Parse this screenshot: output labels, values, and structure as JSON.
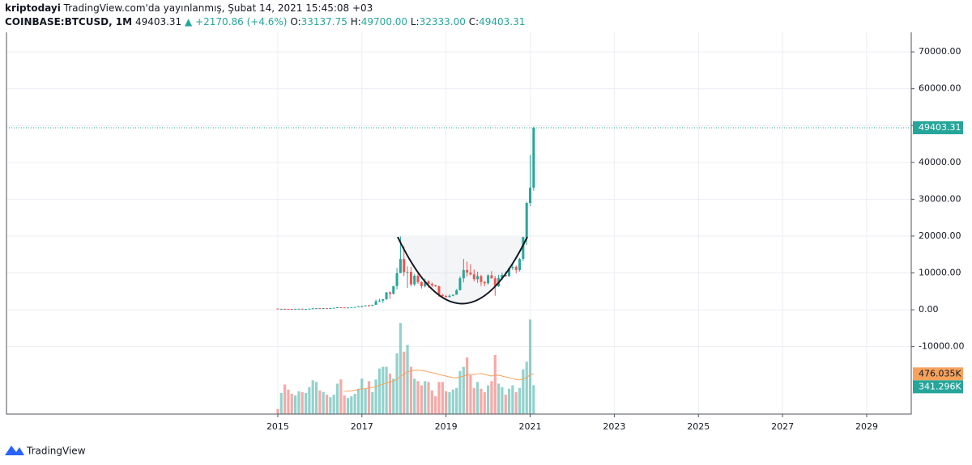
{
  "chart_data": {
    "type": "candlestick",
    "header": {
      "author": "kriptodayi",
      "published": "TradingView.com'da yayınlanmış, Şubat 14, 2021 15:45:08 +03",
      "symbol": "COINBASE:BTCUSD, 1M",
      "price": "49403.31",
      "direction": "▲",
      "change": "+2170.86 (+4.6%)",
      "ohlc": [
        {
          "key": "O:",
          "value": "33137.75"
        },
        {
          "key": "H:",
          "value": "49700.00"
        },
        {
          "key": "L:",
          "value": "32333.00"
        },
        {
          "key": "C:",
          "value": "49403.31"
        }
      ]
    },
    "brand": "TradingView",
    "up_color": "#26a69a",
    "down_color": "#ef5350",
    "x": [
      2015,
      2015.083,
      2015.167,
      2015.25,
      2015.333,
      2015.417,
      2015.5,
      2015.583,
      2015.667,
      2015.75,
      2015.833,
      2015.917,
      2016,
      2016.083,
      2016.167,
      2016.25,
      2016.333,
      2016.417,
      2016.5,
      2016.583,
      2016.667,
      2016.75,
      2016.833,
      2016.917,
      2017,
      2017.083,
      2017.167,
      2017.25,
      2017.333,
      2017.417,
      2017.5,
      2017.583,
      2017.667,
      2017.75,
      2017.833,
      2017.917,
      2018,
      2018.083,
      2018.167,
      2018.25,
      2018.333,
      2018.417,
      2018.5,
      2018.583,
      2018.667,
      2018.75,
      2018.833,
      2018.917,
      2019,
      2019.083,
      2019.167,
      2019.25,
      2019.333,
      2019.417,
      2019.5,
      2019.583,
      2019.667,
      2019.75,
      2019.833,
      2019.917,
      2020,
      2020.083,
      2020.167,
      2020.25,
      2020.333,
      2020.417,
      2020.5,
      2020.583,
      2020.667,
      2020.75,
      2020.833,
      2020.917,
      2021,
      2021.083
    ],
    "open": [
      320,
      218,
      254,
      244,
      236,
      230,
      263,
      284,
      230,
      236,
      314,
      378,
      430,
      368,
      437,
      416,
      448,
      531,
      673,
      624,
      573,
      609,
      700,
      742,
      964,
      970,
      1190,
      1080,
      1350,
      2300,
      2480,
      2870,
      4740,
      4340,
      6450,
      9950,
      13800,
      10200,
      10300,
      6900,
      9250,
      7500,
      6390,
      7730,
      7030,
      6630,
      6370,
      4040,
      3740,
      3440,
      3800,
      4100,
      5300,
      8550,
      10800,
      10100,
      9600,
      8300,
      9150,
      7550,
      7200,
      9350,
      8520,
      6410,
      8630,
      9450,
      9140,
      11350,
      11650,
      10780,
      13800,
      19700,
      28990,
      33137.75
    ],
    "high": [
      320,
      265,
      300,
      260,
      247,
      268,
      317,
      285,
      245,
      326,
      500,
      465,
      465,
      448,
      439,
      468,
      552,
      780,
      703,
      627,
      615,
      720,
      752,
      975,
      1150,
      1210,
      1350,
      1360,
      2760,
      3000,
      2920,
      4800,
      4980,
      6470,
      11400,
      19891,
      17250,
      11800,
      11700,
      9750,
      10000,
      7770,
      8500,
      8000,
      7400,
      6800,
      6570,
      4300,
      4100,
      4190,
      4120,
      5640,
      9090,
      13800,
      13100,
      12350,
      10950,
      10350,
      9510,
      7760,
      9600,
      10500,
      9180,
      9470,
      10060,
      10390,
      11440,
      12470,
      12050,
      14100,
      19870,
      29300,
      41986,
      49700
    ],
    "low": [
      170,
      212,
      235,
      214,
      228,
      220,
      255,
      199,
      226,
      236,
      310,
      347,
      350,
      365,
      409,
      414,
      440,
      530,
      580,
      535,
      570,
      605,
      690,
      735,
      750,
      920,
      890,
      1050,
      1340,
      2100,
      1830,
      2700,
      2970,
      4150,
      5520,
      10800,
      9150,
      5900,
      6400,
      6430,
      7000,
      5770,
      6070,
      5880,
      6110,
      6200,
      3550,
      3150,
      3360,
      3370,
      3680,
      4100,
      5290,
      7450,
      9070,
      9300,
      7710,
      7300,
      6500,
      6420,
      6850,
      8450,
      3800,
      6170,
      8100,
      8920,
      9000,
      10800,
      9900,
      10400,
      13240,
      17580,
      28130,
      32333
    ],
    "close": [
      218,
      254,
      244,
      236,
      230,
      263,
      284,
      230,
      236,
      314,
      378,
      430,
      368,
      437,
      416,
      448,
      531,
      673,
      624,
      573,
      609,
      700,
      742,
      964,
      970,
      1190,
      1080,
      1350,
      2300,
      2480,
      2870,
      4740,
      4340,
      6450,
      9950,
      13800,
      10200,
      10300,
      6900,
      9250,
      7500,
      6390,
      7730,
      7030,
      6630,
      6370,
      4040,
      3740,
      3440,
      3800,
      4100,
      5300,
      8550,
      10800,
      10100,
      9600,
      8300,
      9150,
      7550,
      7200,
      9350,
      8520,
      6410,
      8630,
      9450,
      9140,
      11350,
      11650,
      10780,
      13800,
      19700,
      28990,
      33137.75,
      49403.31
    ],
    "volume": {
      "values": [
        60,
        250,
        350,
        290,
        240,
        220,
        270,
        260,
        250,
        320,
        400,
        380,
        280,
        260,
        230,
        200,
        230,
        360,
        410,
        220,
        190,
        210,
        240,
        300,
        420,
        300,
        390,
        260,
        410,
        540,
        560,
        560,
        480,
        420,
        720,
        1080,
        740,
        820,
        560,
        420,
        390,
        340,
        390,
        380,
        280,
        210,
        380,
        380,
        270,
        260,
        290,
        310,
        510,
        560,
        670,
        460,
        310,
        380,
        300,
        260,
        340,
        390,
        700,
        360,
        320,
        230,
        300,
        340,
        260,
        310,
        530,
        620,
        1120,
        341.296
      ],
      "value_labels": [
        null,
        null,
        null,
        null,
        null,
        null,
        null,
        null,
        null,
        null,
        null,
        null,
        null,
        null,
        null,
        null,
        null,
        null,
        null,
        null,
        null,
        null,
        null,
        null,
        null,
        null,
        null,
        null,
        null,
        null,
        null,
        null,
        null,
        null,
        null,
        null,
        null,
        null,
        null,
        null,
        null,
        null,
        null,
        null,
        null,
        null,
        null,
        null,
        null,
        null,
        null,
        null,
        null,
        null,
        null,
        null,
        null,
        null,
        null,
        null,
        null,
        null,
        null,
        null,
        null,
        null,
        null,
        null,
        null,
        null,
        null,
        null,
        null,
        "341.296K"
      ],
      "axis": "y2"
    },
    "volume_ma": {
      "color": "#f7a25c",
      "values": [
        null,
        null,
        null,
        null,
        null,
        null,
        null,
        null,
        null,
        null,
        null,
        null,
        null,
        null,
        null,
        null,
        null,
        null,
        null,
        270,
        272,
        275,
        282,
        290,
        300,
        300,
        312,
        314,
        325,
        340,
        355,
        370,
        380,
        390,
        410,
        450,
        470,
        500,
        510,
        520,
        520,
        515,
        510,
        500,
        490,
        480,
        470,
        460,
        450,
        440,
        430,
        430,
        440,
        450,
        465,
        470,
        470,
        475,
        480,
        470,
        460,
        450,
        460,
        460,
        450,
        440,
        430,
        420,
        410,
        405,
        415,
        430,
        470,
        476.035
      ],
      "value_labels": [
        null,
        null,
        null,
        null,
        null,
        null,
        null,
        null,
        null,
        null,
        null,
        null,
        null,
        null,
        null,
        null,
        null,
        null,
        null,
        null,
        null,
        null,
        null,
        null,
        null,
        null,
        null,
        null,
        null,
        null,
        null,
        null,
        null,
        null,
        null,
        null,
        null,
        null,
        null,
        null,
        null,
        null,
        null,
        null,
        null,
        null,
        null,
        null,
        null,
        null,
        null,
        null,
        null,
        null,
        null,
        null,
        null,
        null,
        null,
        null,
        null,
        null,
        null,
        null,
        null,
        null,
        null,
        null,
        null,
        null,
        null,
        null,
        null,
        "476.035K"
      ],
      "axis": "y2"
    },
    "xlim": [
      2008.55,
      2030.06
    ],
    "xticks": [
      2015,
      2017,
      2019,
      2021,
      2023,
      2025,
      2027,
      2029
    ],
    "ylim": [
      -28300,
      75300
    ],
    "yticks": [
      {
        "value": -10000,
        "label": "-10000.00"
      },
      {
        "value": 0,
        "label": "0.00"
      },
      {
        "value": 10000,
        "label": "10000.00"
      },
      {
        "value": 20000,
        "label": "20000.00"
      },
      {
        "value": 30000,
        "label": "30000.00"
      },
      {
        "value": 40000,
        "label": "40000.00"
      },
      {
        "value": 50000,
        "label": "50000.00"
      },
      {
        "value": 60000,
        "label": "60000.00"
      },
      {
        "value": 70000,
        "label": "70000.00"
      }
    ],
    "y2lim": [
      0,
      1150
    ],
    "grid": true
  }
}
